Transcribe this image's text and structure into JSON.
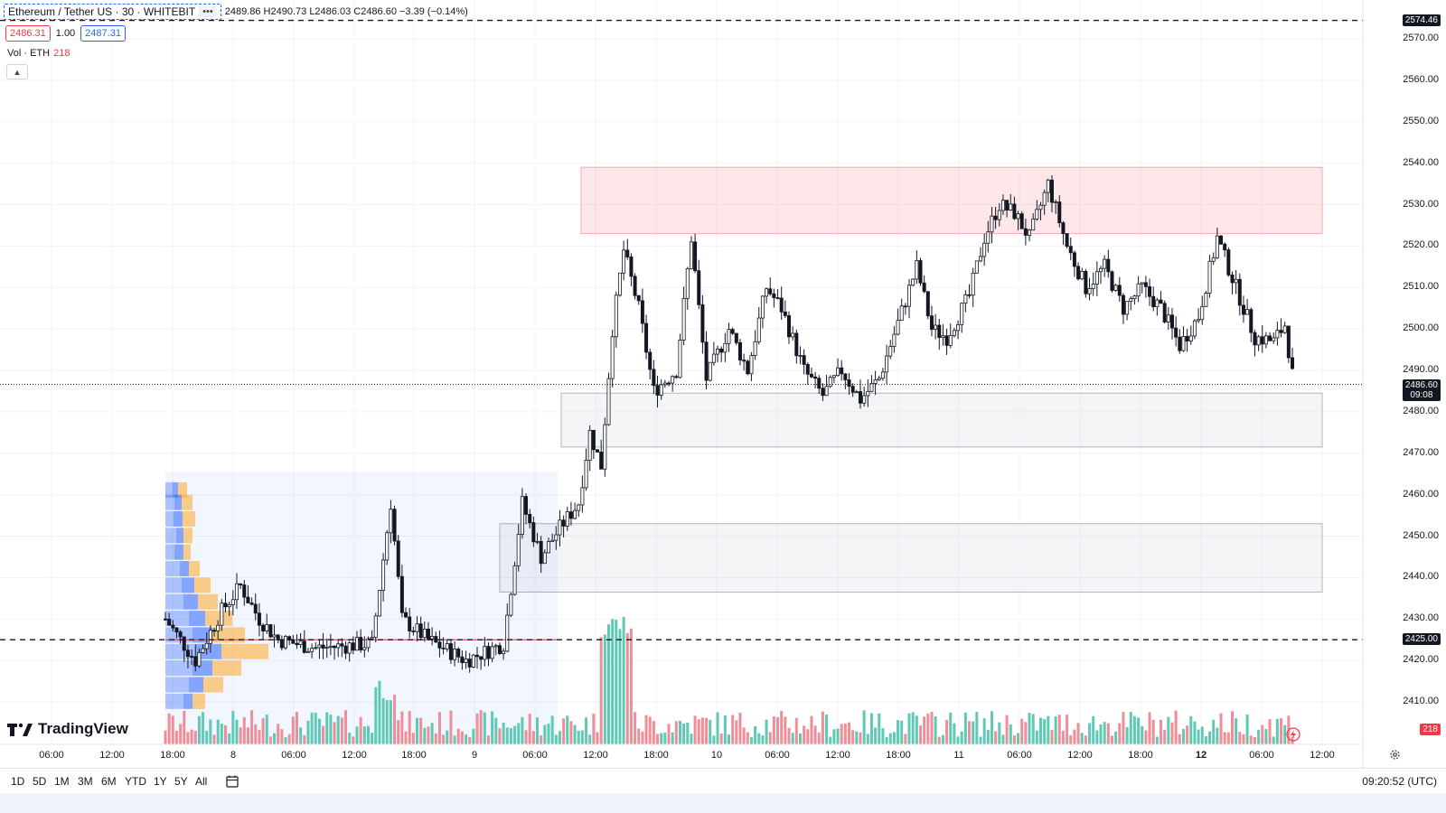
{
  "header": {
    "symbol": "Ethereum / Tether US · 30 · WHITEBIT",
    "more_label": "•••",
    "ohlc": "2489.86 H2490.73 L2486.03 C2486.60 −3.39 (−0.14%)",
    "bid": "2486.31",
    "spread": "1.00",
    "ask": "2487.31"
  },
  "volume_legend": {
    "label": "Vol · ETH",
    "value": "218"
  },
  "price_axis": {
    "labels": [
      "2570.00",
      "2560.00",
      "2550.00",
      "2540.00",
      "2530.00",
      "2520.00",
      "2510.00",
      "2500.00",
      "2490.00",
      "2480.00",
      "2470.00",
      "2460.00",
      "2450.00",
      "2440.00",
      "2430.00",
      "2420.00",
      "2410.00"
    ],
    "top_line_label": "2574.46",
    "current_price": "2486.60",
    "countdown": "09:08",
    "support_label": "2425.00",
    "volume_badge": "218"
  },
  "time_axis": {
    "labels": [
      "06:00",
      "12:00",
      "18:00",
      "8",
      "06:00",
      "12:00",
      "18:00",
      "9",
      "06:00",
      "12:00",
      "18:00",
      "10",
      "06:00",
      "12:00",
      "18:00",
      "11",
      "06:00",
      "12:00",
      "18:00",
      "12",
      "06:00",
      "12:00"
    ]
  },
  "bottom_bar": {
    "ranges": [
      "1D",
      "5D",
      "1M",
      "3M",
      "6M",
      "YTD",
      "1Y",
      "5Y",
      "All"
    ],
    "clock": "09:20:52 (UTC)"
  },
  "brand": {
    "logo_text": "TradingView"
  },
  "colors": {
    "up": "#26a69a",
    "down": "#131722",
    "vol_up": "#5fc9b6",
    "vol_down": "#f08e97",
    "resistance": "#f7a8ae",
    "support": "#b2b5be",
    "accent": "#2962ff"
  },
  "chart_data": {
    "type": "candlestick",
    "title": "Ethereum / Tether US · 30 · WHITEBIT",
    "ylim": [
      2405,
      2580
    ],
    "zones": [
      {
        "kind": "resistance",
        "low": 2523,
        "high": 2539
      },
      {
        "kind": "support",
        "low": 2471.5,
        "high": 2484.5
      },
      {
        "kind": "support",
        "low": 2436.5,
        "high": 2453
      }
    ],
    "levels": [
      {
        "value": 2574.46,
        "style": "dashed"
      },
      {
        "value": 2425.0,
        "style": "dashed"
      }
    ],
    "close_path": [
      [
        0,
        2430
      ],
      [
        8,
        2420
      ],
      [
        15,
        2432
      ],
      [
        20,
        2438
      ],
      [
        25,
        2430
      ],
      [
        30,
        2425
      ],
      [
        40,
        2423
      ],
      [
        55,
        2424
      ],
      [
        60,
        2458
      ],
      [
        63,
        2430
      ],
      [
        70,
        2425
      ],
      [
        80,
        2420
      ],
      [
        90,
        2424
      ],
      [
        95,
        2458
      ],
      [
        100,
        2445
      ],
      [
        105,
        2452
      ],
      [
        110,
        2458
      ],
      [
        113,
        2475
      ],
      [
        116,
        2467
      ],
      [
        119,
        2500
      ],
      [
        122,
        2519
      ],
      [
        126,
        2505
      ],
      [
        130,
        2485
      ],
      [
        136,
        2490
      ],
      [
        140,
        2522
      ],
      [
        144,
        2488
      ],
      [
        150,
        2500
      ],
      [
        155,
        2490
      ],
      [
        160,
        2510
      ],
      [
        164,
        2505
      ],
      [
        170,
        2490
      ],
      [
        175,
        2484
      ],
      [
        180,
        2490
      ],
      [
        185,
        2483
      ],
      [
        190,
        2488
      ],
      [
        200,
        2515
      ],
      [
        204,
        2500
      ],
      [
        208,
        2498
      ],
      [
        214,
        2508
      ],
      [
        218,
        2522
      ],
      [
        222,
        2530
      ],
      [
        226,
        2528
      ],
      [
        230,
        2522
      ],
      [
        235,
        2535
      ],
      [
        240,
        2520
      ],
      [
        245,
        2510
      ],
      [
        250,
        2515
      ],
      [
        255,
        2505
      ],
      [
        260,
        2510
      ],
      [
        265,
        2505
      ],
      [
        270,
        2496
      ],
      [
        275,
        2503
      ],
      [
        280,
        2522
      ],
      [
        285,
        2510
      ],
      [
        290,
        2498
      ],
      [
        295,
        2497
      ],
      [
        298,
        2501
      ],
      [
        300,
        2489
      ]
    ],
    "volume_bars": 300
  }
}
